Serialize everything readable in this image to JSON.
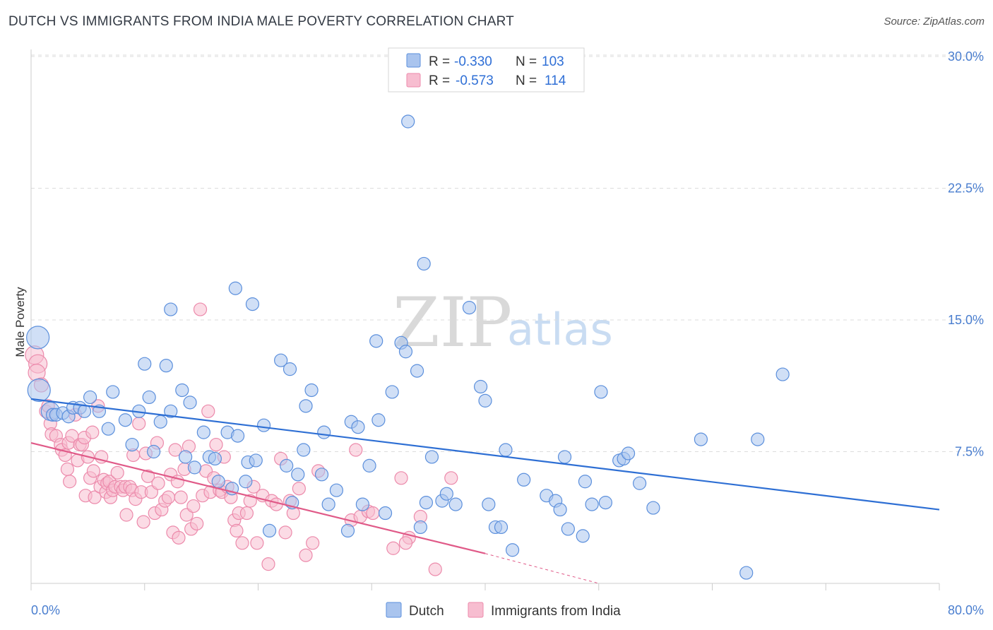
{
  "title": "DUTCH VS IMMIGRANTS FROM INDIA MALE POVERTY CORRELATION CHART",
  "source": "Source: ZipAtlas.com",
  "watermark": {
    "zip": "ZIP",
    "atlas": "atlas"
  },
  "colors": {
    "dutch_fill": "#a9c4ee",
    "dutch_stroke": "#5b8fdc",
    "dutch_line": "#2e6fd4",
    "india_fill": "#f7bdd0",
    "india_stroke": "#ec8aab",
    "india_line": "#e05a88",
    "grid": "#dcdcdc",
    "tick_label": "#4a7ecf"
  },
  "legend": {
    "rows": [
      {
        "r_label": "R =",
        "r_value": "-0.330",
        "n_label": "N =",
        "n_value": "103"
      },
      {
        "r_label": "R =",
        "r_value": "-0.573",
        "n_label": "N =",
        "n_value": "114"
      }
    ]
  },
  "bottom_legend": [
    "Dutch",
    "Immigrants from India"
  ],
  "chart_data": {
    "type": "scatter",
    "title": "DUTCH VS IMMIGRANTS FROM INDIA MALE POVERTY CORRELATION CHART",
    "xlabel": "",
    "ylabel": "Male Poverty",
    "xlim": [
      0,
      80
    ],
    "ylim": [
      0,
      31
    ],
    "x_tick_labels": [
      "0.0%",
      "80.0%"
    ],
    "y_ticks": [
      7.5,
      15.0,
      22.5,
      30.0
    ],
    "y_tick_labels": [
      "7.5%",
      "15.0%",
      "22.5%",
      "30.0%"
    ],
    "grid": true,
    "legend_position": "top-center",
    "series": [
      {
        "name": "Dutch",
        "r": -0.33,
        "n": 103,
        "trend": {
          "x": [
            0,
            80
          ],
          "y": [
            10.5,
            4.2
          ]
        },
        "points": [
          [
            0.6,
            14.0,
            16
          ],
          [
            0.7,
            11.0,
            16
          ],
          [
            1.7,
            9.8,
            13
          ],
          [
            1.9,
            9.6,
            9
          ],
          [
            2.2,
            9.6,
            9
          ],
          [
            2.8,
            9.7,
            9
          ],
          [
            3.3,
            9.5,
            9
          ],
          [
            3.7,
            10.0,
            9
          ],
          [
            4.3,
            10.0,
            9
          ],
          [
            4.7,
            9.8,
            9
          ],
          [
            5.2,
            10.6,
            9
          ],
          [
            6.0,
            9.8,
            9
          ],
          [
            6.8,
            8.8,
            9
          ],
          [
            7.2,
            10.9,
            9
          ],
          [
            8.3,
            9.3,
            9
          ],
          [
            8.9,
            7.9,
            9
          ],
          [
            9.5,
            9.8,
            9
          ],
          [
            10.0,
            12.5,
            9
          ],
          [
            10.4,
            10.6,
            9
          ],
          [
            10.8,
            7.5,
            9
          ],
          [
            11.4,
            9.2,
            9
          ],
          [
            11.9,
            12.4,
            9
          ],
          [
            12.3,
            9.8,
            9
          ],
          [
            12.3,
            15.6,
            9
          ],
          [
            13.3,
            11.0,
            9
          ],
          [
            13.6,
            7.2,
            9
          ],
          [
            14.0,
            10.3,
            9
          ],
          [
            14.4,
            6.6,
            9
          ],
          [
            15.2,
            8.6,
            9
          ],
          [
            15.7,
            7.2,
            9
          ],
          [
            16.2,
            7.1,
            9
          ],
          [
            16.5,
            5.8,
            9
          ],
          [
            17.3,
            8.6,
            9
          ],
          [
            17.7,
            5.4,
            9
          ],
          [
            18.0,
            16.8,
            9
          ],
          [
            18.2,
            8.4,
            9
          ],
          [
            18.9,
            5.8,
            9
          ],
          [
            19.1,
            6.9,
            9
          ],
          [
            19.5,
            15.9,
            9
          ],
          [
            19.8,
            7.0,
            9
          ],
          [
            20.5,
            9.0,
            9
          ],
          [
            21.0,
            3.0,
            9
          ],
          [
            22.0,
            12.7,
            9
          ],
          [
            22.5,
            6.7,
            9
          ],
          [
            22.8,
            12.2,
            9
          ],
          [
            23.0,
            4.6,
            9
          ],
          [
            23.5,
            6.2,
            9
          ],
          [
            24.0,
            7.6,
            9
          ],
          [
            24.2,
            10.1,
            9
          ],
          [
            24.7,
            11.0,
            9
          ],
          [
            25.6,
            6.2,
            9
          ],
          [
            25.8,
            8.6,
            9
          ],
          [
            26.2,
            4.5,
            9
          ],
          [
            26.9,
            5.3,
            9
          ],
          [
            27.9,
            3.0,
            9
          ],
          [
            28.2,
            9.2,
            9
          ],
          [
            28.8,
            8.9,
            9
          ],
          [
            29.2,
            4.5,
            9
          ],
          [
            29.8,
            6.7,
            9
          ],
          [
            30.4,
            13.8,
            9
          ],
          [
            30.6,
            9.3,
            9
          ],
          [
            31.2,
            4.0,
            9
          ],
          [
            31.8,
            10.9,
            9
          ],
          [
            32.6,
            13.7,
            9
          ],
          [
            33.0,
            13.2,
            9
          ],
          [
            33.2,
            26.3,
            9
          ],
          [
            34.0,
            12.1,
            9
          ],
          [
            34.3,
            3.2,
            9
          ],
          [
            34.6,
            18.2,
            9
          ],
          [
            34.8,
            4.6,
            9
          ],
          [
            35.3,
            7.2,
            9
          ],
          [
            36.2,
            4.7,
            9
          ],
          [
            36.6,
            5.1,
            9
          ],
          [
            37.4,
            4.5,
            9
          ],
          [
            38.6,
            15.7,
            9
          ],
          [
            39.6,
            11.2,
            9
          ],
          [
            40.0,
            10.4,
            9
          ],
          [
            40.3,
            4.5,
            9
          ],
          [
            40.9,
            3.2,
            9
          ],
          [
            41.4,
            3.2,
            9
          ],
          [
            41.8,
            7.6,
            9
          ],
          [
            42.4,
            1.9,
            9
          ],
          [
            43.4,
            5.9,
            9
          ],
          [
            45.4,
            5.0,
            9
          ],
          [
            46.2,
            4.7,
            9
          ],
          [
            46.6,
            4.2,
            9
          ],
          [
            47.0,
            7.2,
            9
          ],
          [
            47.3,
            3.1,
            9
          ],
          [
            48.6,
            2.7,
            9
          ],
          [
            48.8,
            5.8,
            9
          ],
          [
            49.4,
            4.5,
            9
          ],
          [
            50.2,
            10.9,
            9
          ],
          [
            50.6,
            4.6,
            9
          ],
          [
            51.8,
            7.0,
            9
          ],
          [
            52.2,
            7.1,
            9
          ],
          [
            52.6,
            7.4,
            9
          ],
          [
            53.6,
            5.7,
            9
          ],
          [
            54.8,
            4.3,
            9
          ],
          [
            59.0,
            8.2,
            9
          ],
          [
            63.0,
            0.6,
            9
          ],
          [
            64.0,
            8.2,
            9
          ],
          [
            66.2,
            11.9,
            9
          ]
        ]
      },
      {
        "name": "Immigrants from India",
        "r": -0.573,
        "n": 114,
        "trend": {
          "x": [
            0,
            40
          ],
          "y": [
            8.0,
            1.7
          ]
        },
        "trend_dashed": {
          "x": [
            40,
            50
          ],
          "y": [
            1.7,
            0.0
          ]
        },
        "points": [
          [
            0.3,
            13.0,
            13
          ],
          [
            0.6,
            12.5,
            13
          ],
          [
            0.5,
            12.0,
            12
          ],
          [
            0.9,
            11.3,
            10
          ],
          [
            1.3,
            9.8,
            9
          ],
          [
            1.5,
            10.1,
            9
          ],
          [
            1.7,
            9.1,
            9
          ],
          [
            1.8,
            8.5,
            9
          ],
          [
            2.2,
            8.4,
            9
          ],
          [
            2.6,
            7.9,
            9
          ],
          [
            2.7,
            7.6,
            9
          ],
          [
            3.0,
            7.3,
            9
          ],
          [
            3.3,
            8.0,
            9
          ],
          [
            3.2,
            6.5,
            9
          ],
          [
            3.4,
            5.8,
            9
          ],
          [
            3.6,
            8.4,
            9
          ],
          [
            3.9,
            9.6,
            9
          ],
          [
            4.1,
            7.0,
            9
          ],
          [
            4.3,
            7.9,
            9
          ],
          [
            4.5,
            7.9,
            9
          ],
          [
            4.7,
            8.3,
            9
          ],
          [
            4.8,
            5.0,
            9
          ],
          [
            5.0,
            7.2,
            9
          ],
          [
            5.2,
            6.0,
            9
          ],
          [
            5.4,
            8.6,
            9
          ],
          [
            5.5,
            6.4,
            9
          ],
          [
            5.6,
            4.9,
            9
          ],
          [
            5.9,
            10.1,
            9
          ],
          [
            6.1,
            5.5,
            9
          ],
          [
            6.2,
            7.2,
            9
          ],
          [
            6.4,
            5.9,
            9
          ],
          [
            6.6,
            5.2,
            9
          ],
          [
            6.7,
            5.7,
            9
          ],
          [
            6.9,
            5.8,
            9
          ],
          [
            7.0,
            4.9,
            9
          ],
          [
            7.2,
            5.3,
            9
          ],
          [
            7.4,
            5.5,
            9
          ],
          [
            7.6,
            6.3,
            9
          ],
          [
            7.9,
            5.5,
            9
          ],
          [
            8.1,
            5.3,
            9
          ],
          [
            8.3,
            5.5,
            9
          ],
          [
            8.4,
            3.9,
            9
          ],
          [
            8.7,
            5.5,
            9
          ],
          [
            8.9,
            5.3,
            9
          ],
          [
            9.0,
            7.3,
            9
          ],
          [
            9.2,
            4.8,
            9
          ],
          [
            9.5,
            9.1,
            9
          ],
          [
            9.7,
            5.2,
            9
          ],
          [
            9.9,
            3.5,
            9
          ],
          [
            10.1,
            7.4,
            9
          ],
          [
            10.3,
            6.1,
            9
          ],
          [
            10.6,
            5.2,
            9
          ],
          [
            10.9,
            4.0,
            9
          ],
          [
            11.1,
            8.0,
            9
          ],
          [
            11.2,
            5.7,
            9
          ],
          [
            11.5,
            4.2,
            9
          ],
          [
            11.8,
            4.7,
            9
          ],
          [
            12.1,
            4.9,
            9
          ],
          [
            12.3,
            6.2,
            9
          ],
          [
            12.5,
            2.9,
            9
          ],
          [
            12.7,
            7.6,
            9
          ],
          [
            12.9,
            5.8,
            9
          ],
          [
            13.0,
            2.6,
            9
          ],
          [
            13.2,
            4.9,
            9
          ],
          [
            13.5,
            6.5,
            9
          ],
          [
            13.7,
            3.9,
            9
          ],
          [
            13.9,
            7.8,
            9
          ],
          [
            14.1,
            3.1,
            9
          ],
          [
            14.3,
            4.4,
            9
          ],
          [
            14.6,
            3.4,
            9
          ],
          [
            14.9,
            15.6,
            9
          ],
          [
            15.1,
            5.0,
            9
          ],
          [
            15.4,
            6.4,
            9
          ],
          [
            15.6,
            9.8,
            9
          ],
          [
            15.8,
            5.2,
            9
          ],
          [
            16.1,
            6.0,
            9
          ],
          [
            16.3,
            7.9,
            9
          ],
          [
            16.6,
            5.3,
            9
          ],
          [
            16.8,
            5.2,
            9
          ],
          [
            17.0,
            7.2,
            9
          ],
          [
            17.3,
            5.5,
            9
          ],
          [
            17.6,
            4.9,
            9
          ],
          [
            17.9,
            3.6,
            9
          ],
          [
            18.1,
            3.0,
            9
          ],
          [
            18.3,
            4.0,
            9
          ],
          [
            18.6,
            2.3,
            9
          ],
          [
            19.0,
            4.0,
            9
          ],
          [
            19.3,
            4.7,
            9
          ],
          [
            19.6,
            5.5,
            9
          ],
          [
            19.9,
            2.3,
            9
          ],
          [
            20.4,
            5.0,
            9
          ],
          [
            20.9,
            1.1,
            9
          ],
          [
            21.2,
            4.7,
            9
          ],
          [
            21.6,
            4.5,
            9
          ],
          [
            22.0,
            7.1,
            9
          ],
          [
            22.4,
            2.9,
            9
          ],
          [
            22.8,
            4.7,
            9
          ],
          [
            23.1,
            4.0,
            9
          ],
          [
            23.6,
            5.4,
            9
          ],
          [
            24.2,
            1.6,
            9
          ],
          [
            24.8,
            2.3,
            9
          ],
          [
            25.3,
            6.4,
            9
          ],
          [
            28.2,
            3.6,
            9
          ],
          [
            28.6,
            7.6,
            9
          ],
          [
            29.0,
            3.8,
            9
          ],
          [
            29.7,
            4.1,
            9
          ],
          [
            30.1,
            4.0,
            9
          ],
          [
            31.9,
            2.0,
            9
          ],
          [
            32.6,
            6.0,
            9
          ],
          [
            33.3,
            2.6,
            9
          ],
          [
            34.3,
            3.8,
            9
          ],
          [
            35.6,
            0.8,
            9
          ],
          [
            33.0,
            2.3,
            9
          ],
          [
            37.0,
            6.0,
            9
          ]
        ]
      }
    ]
  }
}
